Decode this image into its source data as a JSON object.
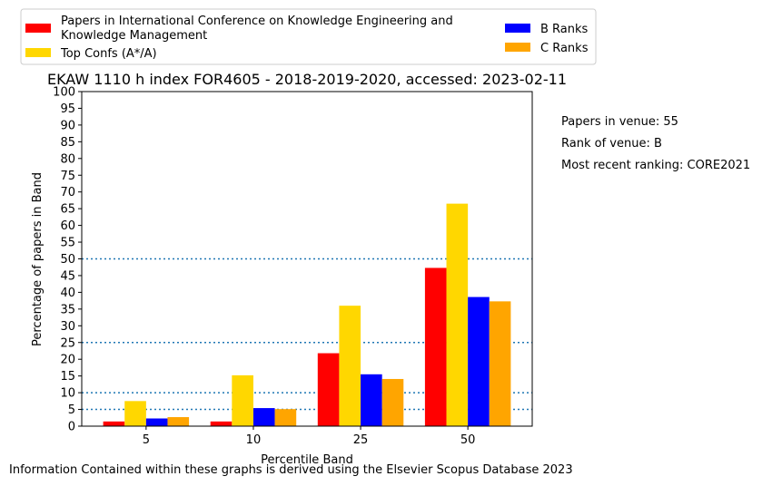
{
  "chart_data": {
    "type": "bar",
    "title": "EKAW 1110 h index FOR4605 - 2018-2019-2020, accessed: 2023-02-11",
    "xlabel": "Percentile Band",
    "ylabel": "Percentage of papers in Band",
    "categories": [
      "5",
      "10",
      "25",
      "50"
    ],
    "ylim": [
      0,
      100
    ],
    "yticks": [
      "0",
      "5",
      "10",
      "15",
      "20",
      "25",
      "30",
      "35",
      "40",
      "45",
      "50",
      "55",
      "60",
      "65",
      "70",
      "75",
      "80",
      "85",
      "90",
      "95",
      "100"
    ],
    "reference_lines": [
      5,
      10,
      25,
      50
    ],
    "reference_line_color": "#1f77b4",
    "legend_placement": "top, above plot",
    "grid": false,
    "series": [
      {
        "name": "Papers in International Conference on Knowledge Engineering and Knowledge Management",
        "color": "#ff0000",
        "values": [
          1.4,
          1.4,
          21.8,
          47.3
        ]
      },
      {
        "name": "Top Confs (A*/A)",
        "color": "#ffd700",
        "values": [
          7.5,
          15.2,
          36.0,
          66.5
        ]
      },
      {
        "name": "B Ranks",
        "color": "#0000ff",
        "values": [
          2.3,
          5.4,
          15.5,
          38.6
        ]
      },
      {
        "name": "C Ranks",
        "color": "#ffa500",
        "values": [
          2.7,
          5.1,
          14.1,
          37.3
        ]
      }
    ]
  },
  "legend": {
    "entry1_line1": "Papers in International Conference on Knowledge Engineering and",
    "entry1_line2": "Knowledge Management",
    "entry2": "Top Confs (A*/A)",
    "entry3": "B Ranks",
    "entry4": "C Ranks"
  },
  "side_info": {
    "papers": "Papers in venue: 55",
    "rank": "Rank of venue: B",
    "recent": "Most recent ranking: CORE2021"
  },
  "footer": "Information Contained within these graphs is derived using the Elsevier Scopus Database 2023"
}
